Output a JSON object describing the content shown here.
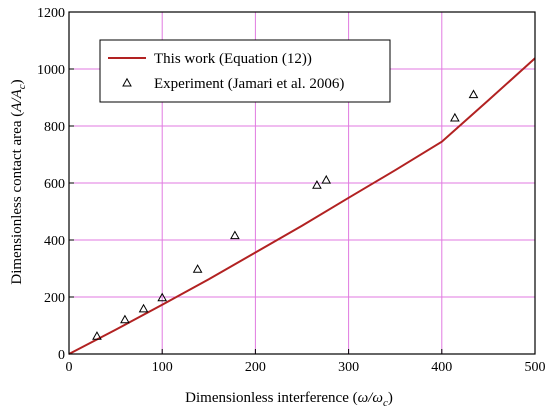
{
  "chart_data": {
    "type": "line",
    "xlabel": {
      "main": "Dimensionless interference (",
      "sym": "ω/ω",
      "sub": "c",
      "tail": ")"
    },
    "ylabel": {
      "main": "Dimensionless contact area (",
      "sym": "A/A",
      "sub": "c",
      "tail": ")"
    },
    "xlim": [
      0,
      500
    ],
    "ylim": [
      0,
      1200
    ],
    "xticks": [
      0,
      100,
      200,
      300,
      400,
      500
    ],
    "yticks": [
      0,
      200,
      400,
      600,
      800,
      1000,
      1200
    ],
    "grid": true,
    "legend_position": "top-left",
    "series": [
      {
        "name": "This work (Equation (12))",
        "kind": "line",
        "color": "#b22222",
        "x": [
          0,
          50,
          100,
          150,
          200,
          250,
          300,
          350,
          400,
          450,
          500
        ],
        "y": [
          0,
          85,
          173,
          262,
          356,
          450,
          548,
          645,
          745,
          890,
          1038
        ]
      },
      {
        "name": "Experiment (Jamari et al. 2006)",
        "kind": "scatter",
        "marker": "triangle-open",
        "color": "#000000",
        "x": [
          30,
          60,
          80,
          100,
          138,
          178,
          266,
          276,
          414,
          434
        ],
        "y": [
          62,
          120,
          158,
          197,
          297,
          415,
          592,
          610,
          828,
          910
        ]
      }
    ]
  }
}
